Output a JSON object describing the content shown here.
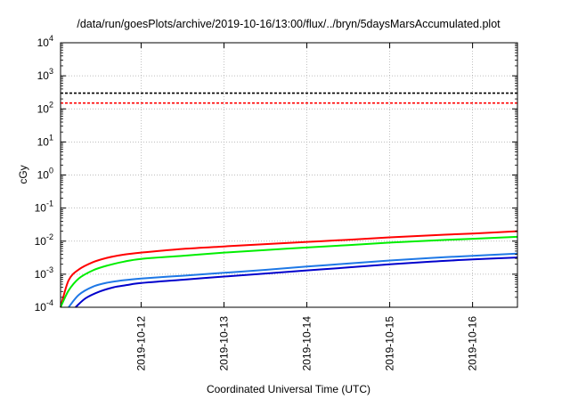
{
  "chart_data": {
    "type": "line",
    "title": "/data/run/goesPlots/archive/2019-10-16/13:00/flux/../bryn/5daysMarsAccumulated.plot",
    "xlabel": "Coordinated Universal Time (UTC)",
    "ylabel": "cGy",
    "yscale": "log",
    "ylim": [
      0.0001,
      10000
    ],
    "xlim": [
      "2019-10-11T00:40",
      "2019-10-16T13:00"
    ],
    "grid": true,
    "legend": "none",
    "y_ticks": [
      {
        "base": "10",
        "exp": "-4"
      },
      {
        "base": "10",
        "exp": "-3"
      },
      {
        "base": "10",
        "exp": "-2"
      },
      {
        "base": "10",
        "exp": "-1"
      },
      {
        "base": "10",
        "exp": "0"
      },
      {
        "base": "10",
        "exp": "1"
      },
      {
        "base": "10",
        "exp": "2"
      },
      {
        "base": "10",
        "exp": "3"
      },
      {
        "base": "10",
        "exp": "4"
      }
    ],
    "x_ticks": [
      {
        "label": "2019-10-12",
        "date": "2019-10-12"
      },
      {
        "label": "2019-10-13",
        "date": "2019-10-13"
      },
      {
        "label": "2019-10-14",
        "date": "2019-10-14"
      },
      {
        "label": "2019-10-15",
        "date": "2019-10-15"
      },
      {
        "label": "2019-10-16",
        "date": "2019-10-16"
      }
    ],
    "reference_lines": [
      {
        "y": 300,
        "color": "#000000",
        "style": "dashed"
      },
      {
        "y": 150,
        "color": "#ff0000",
        "style": "dashed"
      }
    ],
    "series": [
      {
        "color": "#ff0000",
        "points": [
          [
            "2019-10-11T00:40",
            0.0001
          ],
          [
            "2019-10-11T03:00",
            0.00065
          ],
          [
            "2019-10-11T06:00",
            0.0014
          ],
          [
            "2019-10-11T10:00",
            0.0023
          ],
          [
            "2019-10-11T14:00",
            0.0031
          ],
          [
            "2019-10-11T19:00",
            0.0039
          ],
          [
            "2019-10-12T00:00",
            0.0045
          ],
          [
            "2019-10-12T12:00",
            0.0058
          ],
          [
            "2019-10-13T00:00",
            0.0069
          ],
          [
            "2019-10-13T12:00",
            0.0081
          ],
          [
            "2019-10-14T00:00",
            0.0095
          ],
          [
            "2019-10-14T12:00",
            0.011
          ],
          [
            "2019-10-15T00:00",
            0.013
          ],
          [
            "2019-10-15T12:00",
            0.015
          ],
          [
            "2019-10-16T00:00",
            0.017
          ],
          [
            "2019-10-16T13:00",
            0.02
          ]
        ]
      },
      {
        "color": "#00ee00",
        "points": [
          [
            "2019-10-11T00:40",
            0.0001
          ],
          [
            "2019-10-11T03:00",
            0.00032
          ],
          [
            "2019-10-11T06:00",
            0.00075
          ],
          [
            "2019-10-11T10:00",
            0.0013
          ],
          [
            "2019-10-11T14:00",
            0.0018
          ],
          [
            "2019-10-11T19:00",
            0.0024
          ],
          [
            "2019-10-12T00:00",
            0.0029
          ],
          [
            "2019-10-12T12:00",
            0.0036
          ],
          [
            "2019-10-13T00:00",
            0.0045
          ],
          [
            "2019-10-13T12:00",
            0.0054
          ],
          [
            "2019-10-14T00:00",
            0.0064
          ],
          [
            "2019-10-14T12:00",
            0.0076
          ],
          [
            "2019-10-15T00:00",
            0.009
          ],
          [
            "2019-10-15T12:00",
            0.0104
          ],
          [
            "2019-10-16T00:00",
            0.0118
          ],
          [
            "2019-10-16T13:00",
            0.0135
          ]
        ]
      },
      {
        "color": "#1e78e6",
        "points": [
          [
            "2019-10-11T03:00",
            0.0001
          ],
          [
            "2019-10-11T06:00",
            0.00024
          ],
          [
            "2019-10-11T10:00",
            0.00042
          ],
          [
            "2019-10-11T14:00",
            0.00055
          ],
          [
            "2019-10-11T19:00",
            0.00066
          ],
          [
            "2019-10-12T00:00",
            0.00074
          ],
          [
            "2019-10-12T12:00",
            0.0009
          ],
          [
            "2019-10-13T00:00",
            0.0011
          ],
          [
            "2019-10-13T12:00",
            0.00135
          ],
          [
            "2019-10-14T00:00",
            0.0017
          ],
          [
            "2019-10-14T12:00",
            0.0021
          ],
          [
            "2019-10-15T00:00",
            0.0026
          ],
          [
            "2019-10-15T12:00",
            0.0031
          ],
          [
            "2019-10-16T00:00",
            0.0036
          ],
          [
            "2019-10-16T13:00",
            0.0042
          ]
        ]
      },
      {
        "color": "#0000cc",
        "points": [
          [
            "2019-10-11T05:00",
            0.0001
          ],
          [
            "2019-10-11T08:00",
            0.00019
          ],
          [
            "2019-10-11T12:00",
            0.0003
          ],
          [
            "2019-10-11T16:00",
            0.0004
          ],
          [
            "2019-10-11T20:00",
            0.00047
          ],
          [
            "2019-10-12T00:00",
            0.00054
          ],
          [
            "2019-10-12T12:00",
            0.00068
          ],
          [
            "2019-10-13T00:00",
            0.00085
          ],
          [
            "2019-10-13T12:00",
            0.00105
          ],
          [
            "2019-10-14T00:00",
            0.0013
          ],
          [
            "2019-10-14T12:00",
            0.0016
          ],
          [
            "2019-10-15T00:00",
            0.002
          ],
          [
            "2019-10-15T12:00",
            0.0024
          ],
          [
            "2019-10-16T00:00",
            0.0028
          ],
          [
            "2019-10-16T13:00",
            0.0032
          ]
        ]
      }
    ]
  }
}
